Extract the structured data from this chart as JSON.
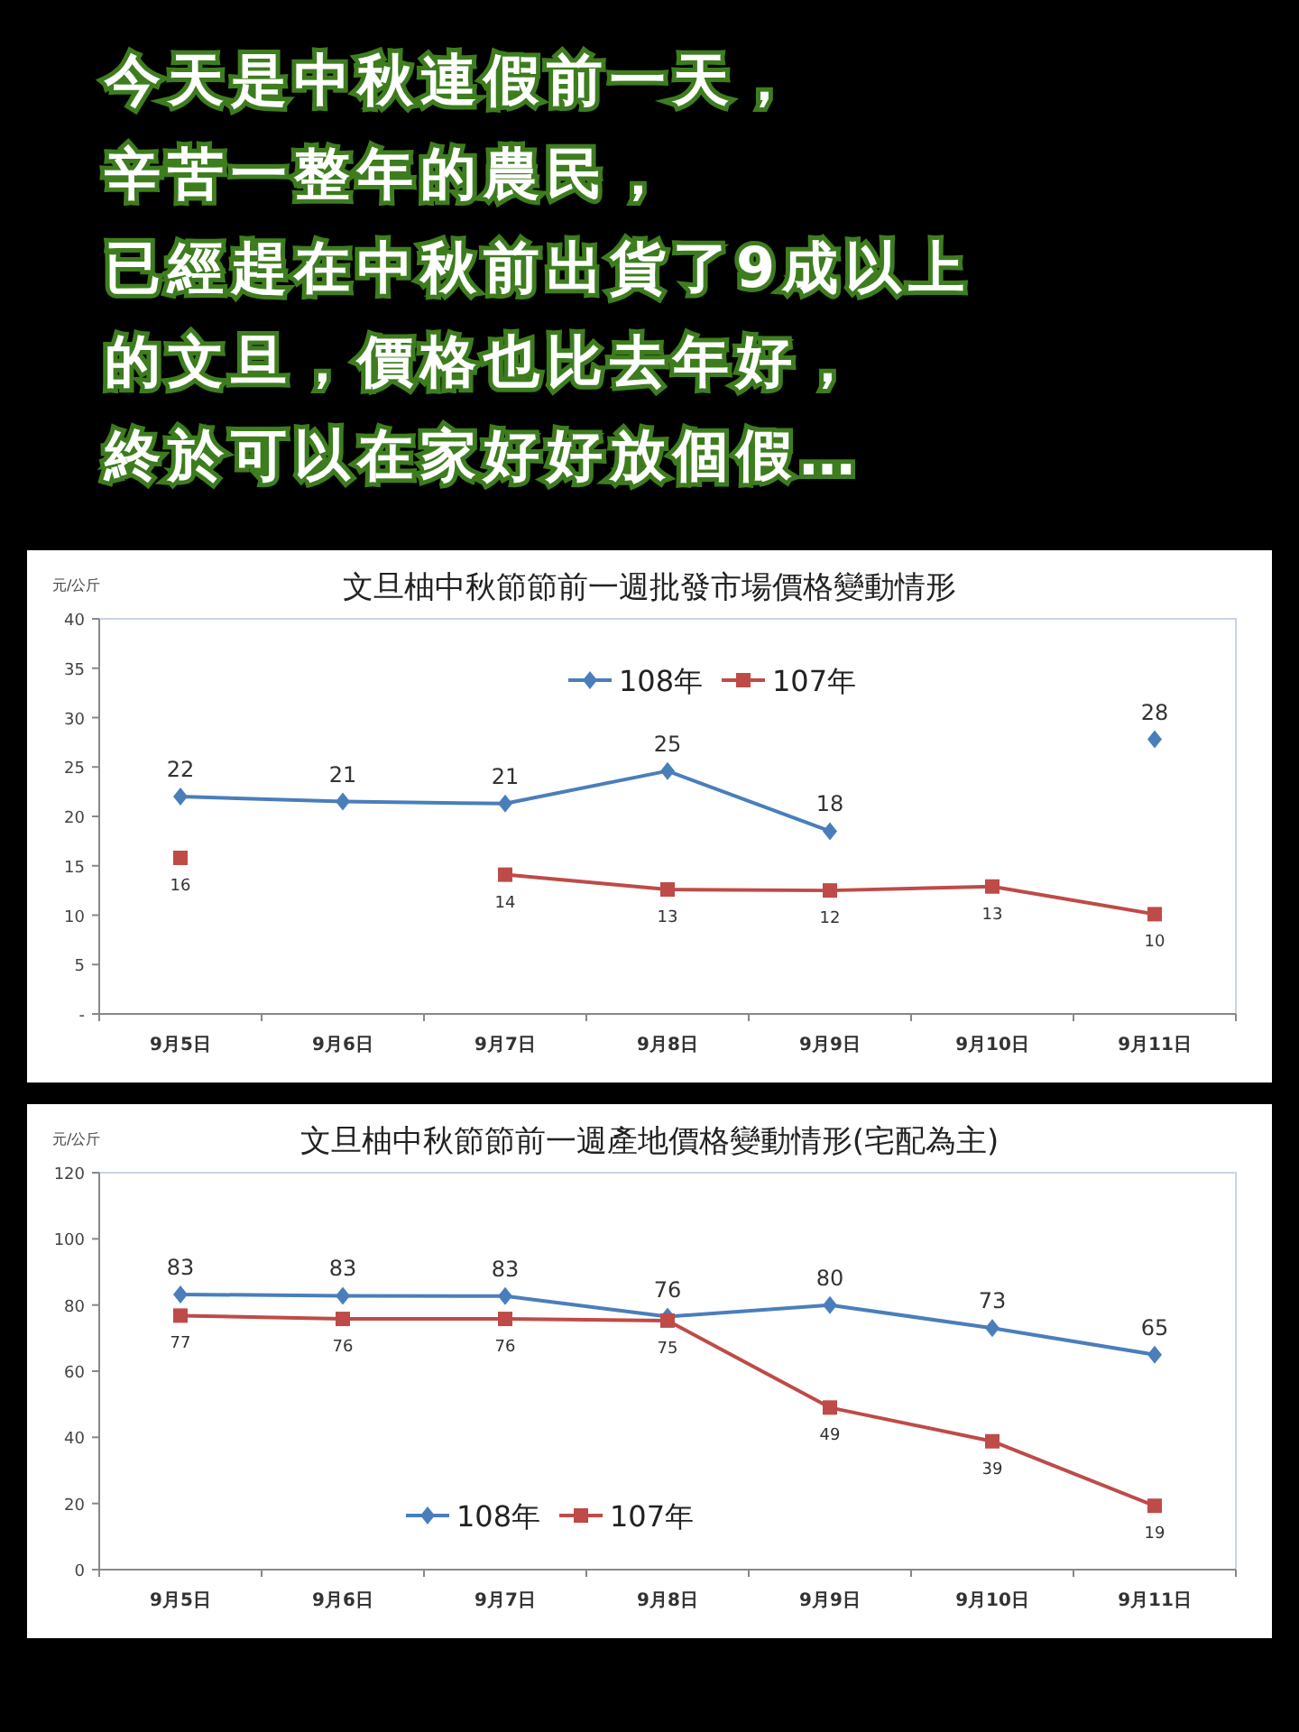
{
  "chart_data": [
    {
      "type": "other",
      "annotations": [
        "今天是中秋連假前一天，",
        "辛苦一整年的農民，",
        "已經趕在中秋前出貨了9成以上",
        "的文旦，價格也比去年好，",
        "終於可以在家好好放個假…"
      ]
    },
    {
      "type": "line",
      "title": "文旦柚中秋節節前一週批發市場價格變動情形",
      "ylabel": "元/公斤",
      "categories": [
        "9月5日",
        "9月6日",
        "9月7日",
        "9月8日",
        "9月9日",
        "9月10日",
        "9月11日"
      ],
      "ylim": [
        0,
        40
      ],
      "yticks": [
        {
          "value": 0,
          "label": "-"
        },
        5,
        10,
        15,
        20,
        25,
        30,
        35,
        40
      ],
      "legend": "top",
      "series": [
        {
          "name": "108年",
          "color": "#4a7ebb",
          "marker": "diamond",
          "values": [
            22,
            21.5,
            21.3,
            24.6,
            18.5,
            null,
            27.8
          ],
          "value_labels": [
            "22",
            "21",
            "21",
            "25",
            "18",
            null,
            "28"
          ]
        },
        {
          "name": "107年",
          "color": "#be4b48",
          "marker": "square",
          "values": [
            15.8,
            null,
            14.1,
            12.6,
            12.5,
            12.9,
            10.1
          ],
          "value_labels": [
            "16",
            null,
            "14",
            "13",
            "12",
            "13",
            "10"
          ]
        }
      ]
    },
    {
      "type": "line",
      "title": "文旦柚中秋節節前一週產地價格變動情形(宅配為主)",
      "ylabel": "元/公斤",
      "categories": [
        "9月5日",
        "9月6日",
        "9月7日",
        "9月8日",
        "9月9日",
        "9月10日",
        "9月11日"
      ],
      "ylim": [
        0,
        120
      ],
      "yticks": [
        0,
        20,
        40,
        60,
        80,
        100,
        120
      ],
      "legend": "bottom",
      "series": [
        {
          "name": "108年",
          "color": "#4a7ebb",
          "marker": "diamond",
          "values": [
            83.2,
            82.8,
            82.7,
            76.5,
            80,
            73,
            65
          ],
          "value_labels": [
            "83",
            "83",
            "83",
            "76",
            "80",
            "73",
            "65"
          ]
        },
        {
          "name": "107年",
          "color": "#be4b48",
          "marker": "square",
          "values": [
            76.8,
            75.8,
            75.8,
            75.3,
            49,
            38.8,
            19.3
          ],
          "value_labels": [
            "77",
            "76",
            "76",
            "75",
            "49",
            "39",
            "19"
          ]
        }
      ]
    }
  ]
}
